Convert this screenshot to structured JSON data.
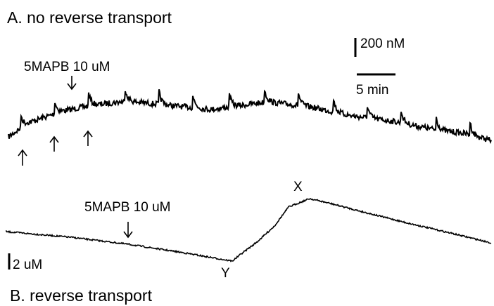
{
  "panel_a": {
    "title": "A. no reverse transport",
    "drug_label": "5MAPB 10 uM",
    "scale_conc": "200 nM",
    "scale_time": "5 min"
  },
  "panel_b": {
    "title": "B. reverse transport",
    "drug_label": "5MAPB 10 uM",
    "scale_conc": "2 uM",
    "point_x": "X",
    "point_y": "Y"
  }
}
